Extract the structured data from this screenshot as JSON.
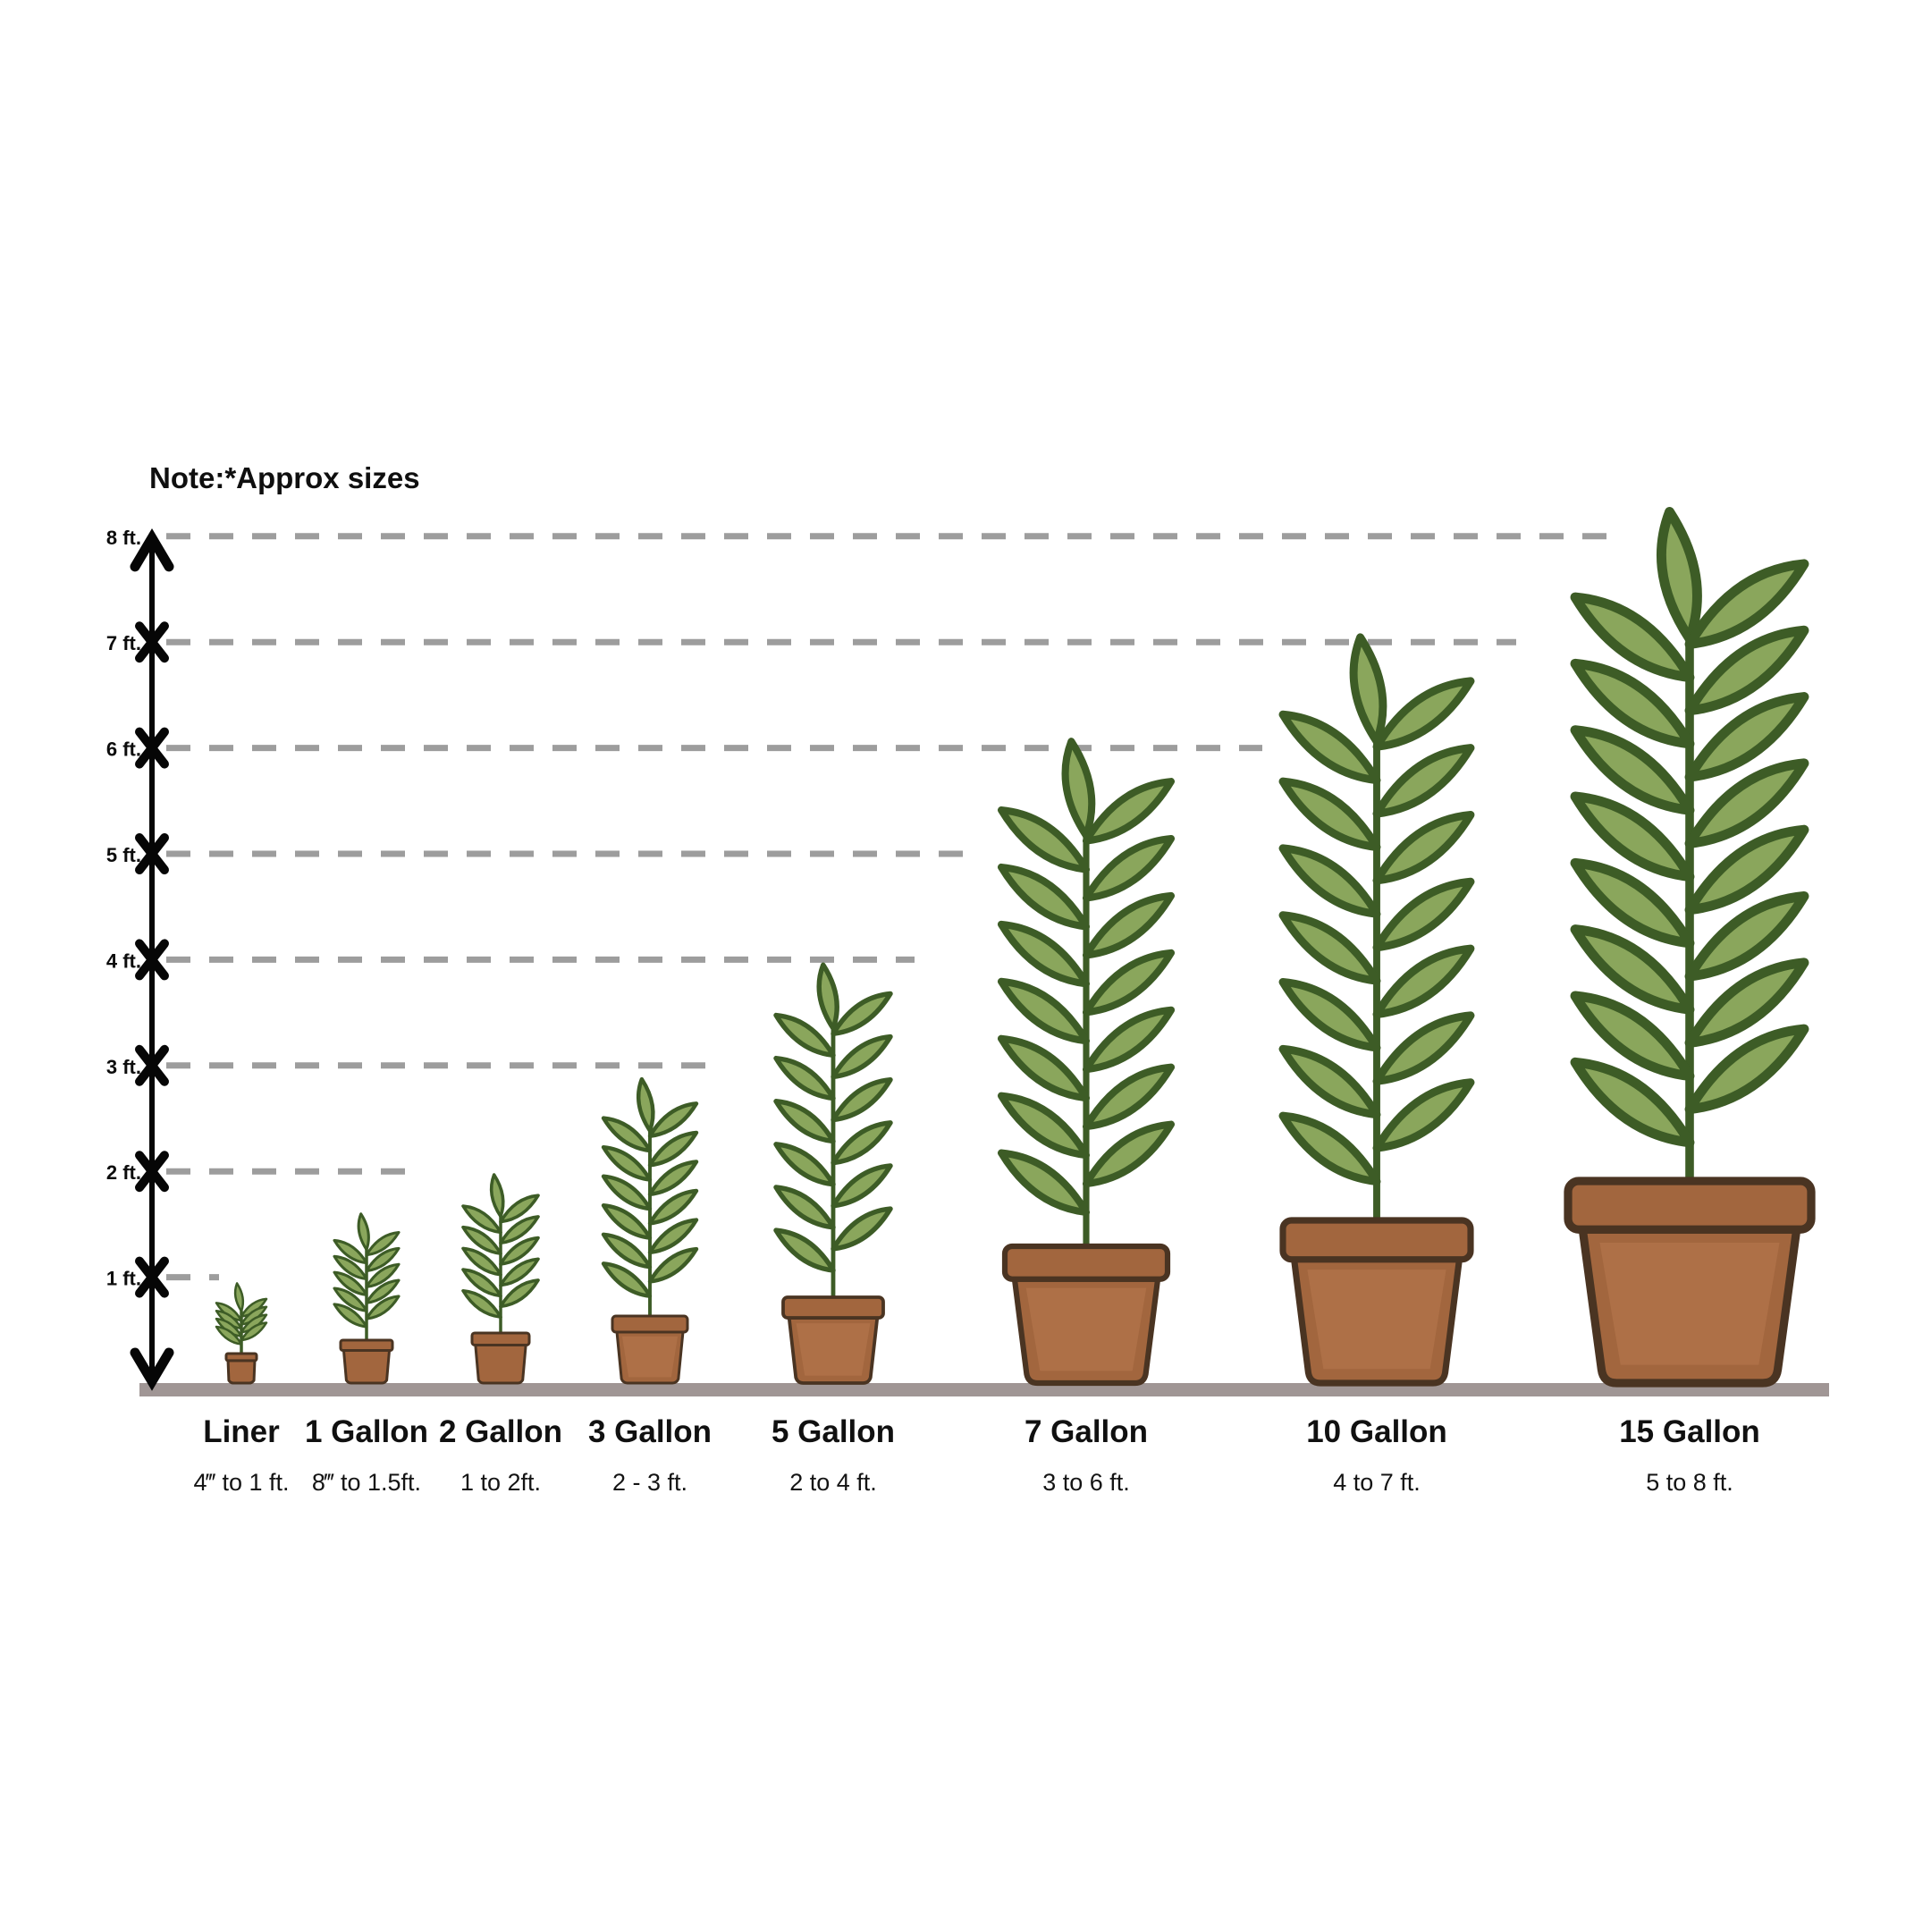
{
  "note": "Note:*Approx sizes",
  "colors": {
    "background": "#ffffff",
    "text": "#0f0f0f",
    "axis": "#060606",
    "dashed_line": "#9d9d9d",
    "ground": "#a09695",
    "leaf_fill": "#8aa65c",
    "leaf_outline": "#3d5c26",
    "stem": "#3d5c26",
    "pot_fill": "#a2663e",
    "pot_highlight": "#ae7047",
    "pot_outline": "#4a3422"
  },
  "chart_data": {
    "type": "pictorial-bar",
    "title": "Note:*Approx sizes",
    "subtitle": "",
    "xlabel": "",
    "ylabel": "",
    "y_axis": {
      "unit": "ft",
      "range_ft": [
        0,
        8
      ],
      "tick_labels": [
        "8 ft.",
        "7 ft.",
        "6 ft.",
        "5 ft.",
        "4 ft.",
        "3 ft.",
        "2 ft.",
        "1 ft."
      ],
      "gridlines": "dashed-gray-horizontal",
      "axis_style": "vertical double-arrow line with X tick markers"
    },
    "legend": "none",
    "categories": [
      {
        "label": "Liner",
        "size_range": "4‴ to 1 ft.",
        "drawn_height_ft": 0.85
      },
      {
        "label": "1 Gallon",
        "size_range": "8‴ to 1.5ft.",
        "drawn_height_ft": 1.48
      },
      {
        "label": "2 Gallon",
        "size_range": "1 to 2ft.",
        "drawn_height_ft": 1.83
      },
      {
        "label": "3 Gallon",
        "size_range": "2 - 3 ft.",
        "drawn_height_ft": 2.7
      },
      {
        "label": "5 Gallon",
        "size_range": "2 to 4 ft.",
        "drawn_height_ft": 3.74
      },
      {
        "label": "7 Gallon",
        "size_range": "3 to 6 ft.",
        "drawn_height_ft": 5.75
      },
      {
        "label": "10 Gallon",
        "size_range": "4 to 7 ft.",
        "drawn_height_ft": 6.7
      },
      {
        "label": "15 Gallon",
        "size_range": "5 to 8 ft.",
        "drawn_height_ft": 7.81
      }
    ]
  }
}
